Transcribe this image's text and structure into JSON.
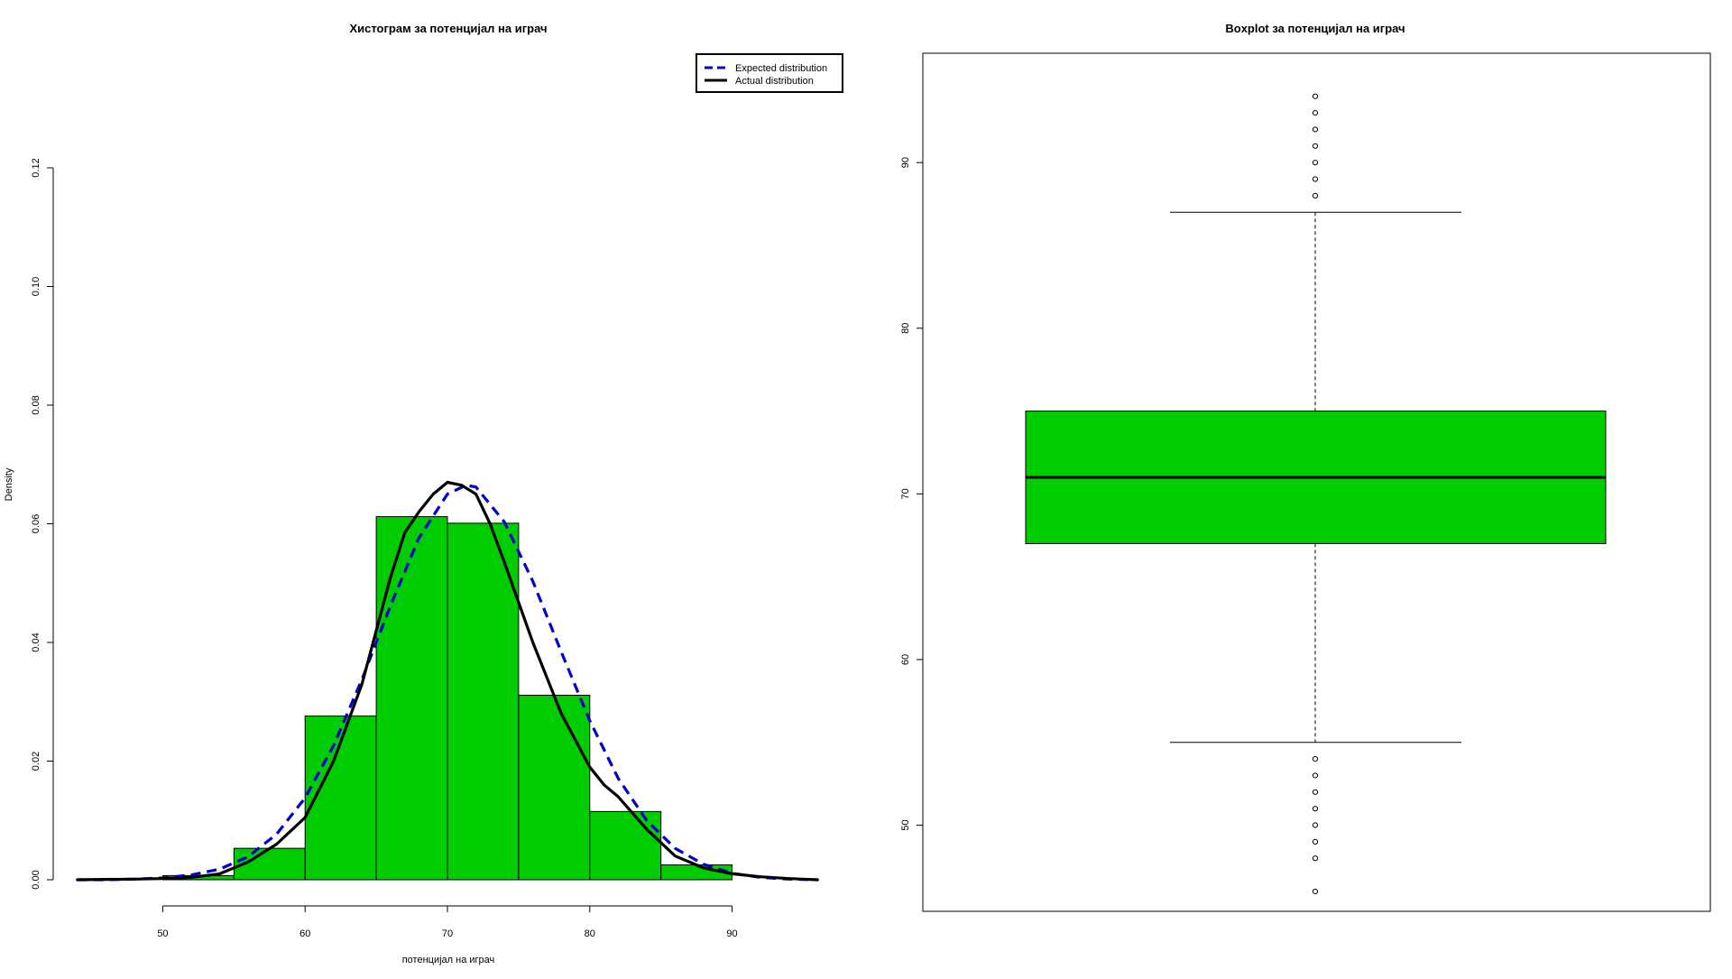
{
  "chart_data": [
    {
      "type": "histogram",
      "title": "Хистограм за  потенцијал на играч",
      "xlabel": "потенцијал на играч",
      "ylabel": "Density",
      "xlim": [
        43,
        97
      ],
      "ylim": [
        0,
        0.12
      ],
      "x_ticks": [
        "50",
        "60",
        "70",
        "80",
        "90"
      ],
      "y_ticks": [
        "0.00",
        "0.02",
        "0.04",
        "0.06",
        "0.08",
        "0.10",
        "0.12"
      ],
      "bar_color": "#00cc00",
      "bins": [
        {
          "start": 50,
          "end": 55,
          "density": 0.0007
        },
        {
          "start": 55,
          "end": 60,
          "density": 0.0053
        },
        {
          "start": 60,
          "end": 65,
          "density": 0.0276
        },
        {
          "start": 65,
          "end": 70,
          "density": 0.0612
        },
        {
          "start": 70,
          "end": 75,
          "density": 0.0601
        },
        {
          "start": 75,
          "end": 80,
          "density": 0.0311
        },
        {
          "start": 80,
          "end": 85,
          "density": 0.0115
        },
        {
          "start": 85,
          "end": 90,
          "density": 0.0025
        }
      ],
      "legend": {
        "position": "top-right",
        "entries": [
          {
            "label": "Expected distribution",
            "color": "#0000cc",
            "style": "dashed"
          },
          {
            "label": "Actual distribution",
            "color": "#000000",
            "style": "solid"
          }
        ]
      },
      "series": [
        {
          "name": "Expected distribution",
          "color": "#0000cc",
          "style": "dashed",
          "x": [
            44,
            46,
            48,
            50,
            52,
            54,
            56,
            58,
            60,
            62,
            64,
            66,
            68,
            70,
            71.3,
            72,
            74,
            76,
            78,
            80,
            82,
            84,
            86,
            88,
            90,
            92,
            94,
            96
          ],
          "y": [
            0.0,
            0.0,
            0.0001,
            0.0003,
            0.0008,
            0.0018,
            0.0039,
            0.0077,
            0.0138,
            0.0226,
            0.0338,
            0.0462,
            0.0576,
            0.065,
            0.0665,
            0.0662,
            0.0603,
            0.0503,
            0.0384,
            0.0268,
            0.0171,
            0.01,
            0.0053,
            0.0026,
            0.0011,
            0.0004,
            0.0001,
            0.0
          ]
        },
        {
          "name": "Actual distribution",
          "color": "#000000",
          "style": "solid",
          "x": [
            44,
            48,
            50,
            52,
            54,
            56,
            58,
            60,
            62,
            64,
            65,
            66,
            67,
            68,
            69,
            70,
            71,
            72,
            73,
            74,
            76,
            78,
            80,
            81,
            82,
            84,
            86,
            88,
            90,
            92,
            94,
            96
          ],
          "y": [
            0.0,
            0.0001,
            0.0002,
            0.0004,
            0.001,
            0.003,
            0.006,
            0.0105,
            0.02,
            0.033,
            0.042,
            0.051,
            0.0585,
            0.062,
            0.065,
            0.067,
            0.0665,
            0.065,
            0.06,
            0.0535,
            0.04,
            0.028,
            0.019,
            0.016,
            0.014,
            0.0085,
            0.004,
            0.002,
            0.001,
            0.0005,
            0.0002,
            0.0
          ]
        }
      ]
    },
    {
      "type": "boxplot",
      "title": "Boxplot за  потенцијал на играч",
      "ylim": [
        44.8,
        96.6
      ],
      "y_ticks": [
        "50",
        "60",
        "70",
        "80",
        "90"
      ],
      "box_color": "#00cc00",
      "box": {
        "lower_whisker": 55,
        "q1": 67,
        "median": 71,
        "q3": 75,
        "upper_whisker": 87
      },
      "outliers": [
        94,
        93,
        92,
        91,
        90,
        89,
        88,
        54,
        53,
        52,
        51,
        50,
        49,
        48,
        46
      ]
    }
  ]
}
